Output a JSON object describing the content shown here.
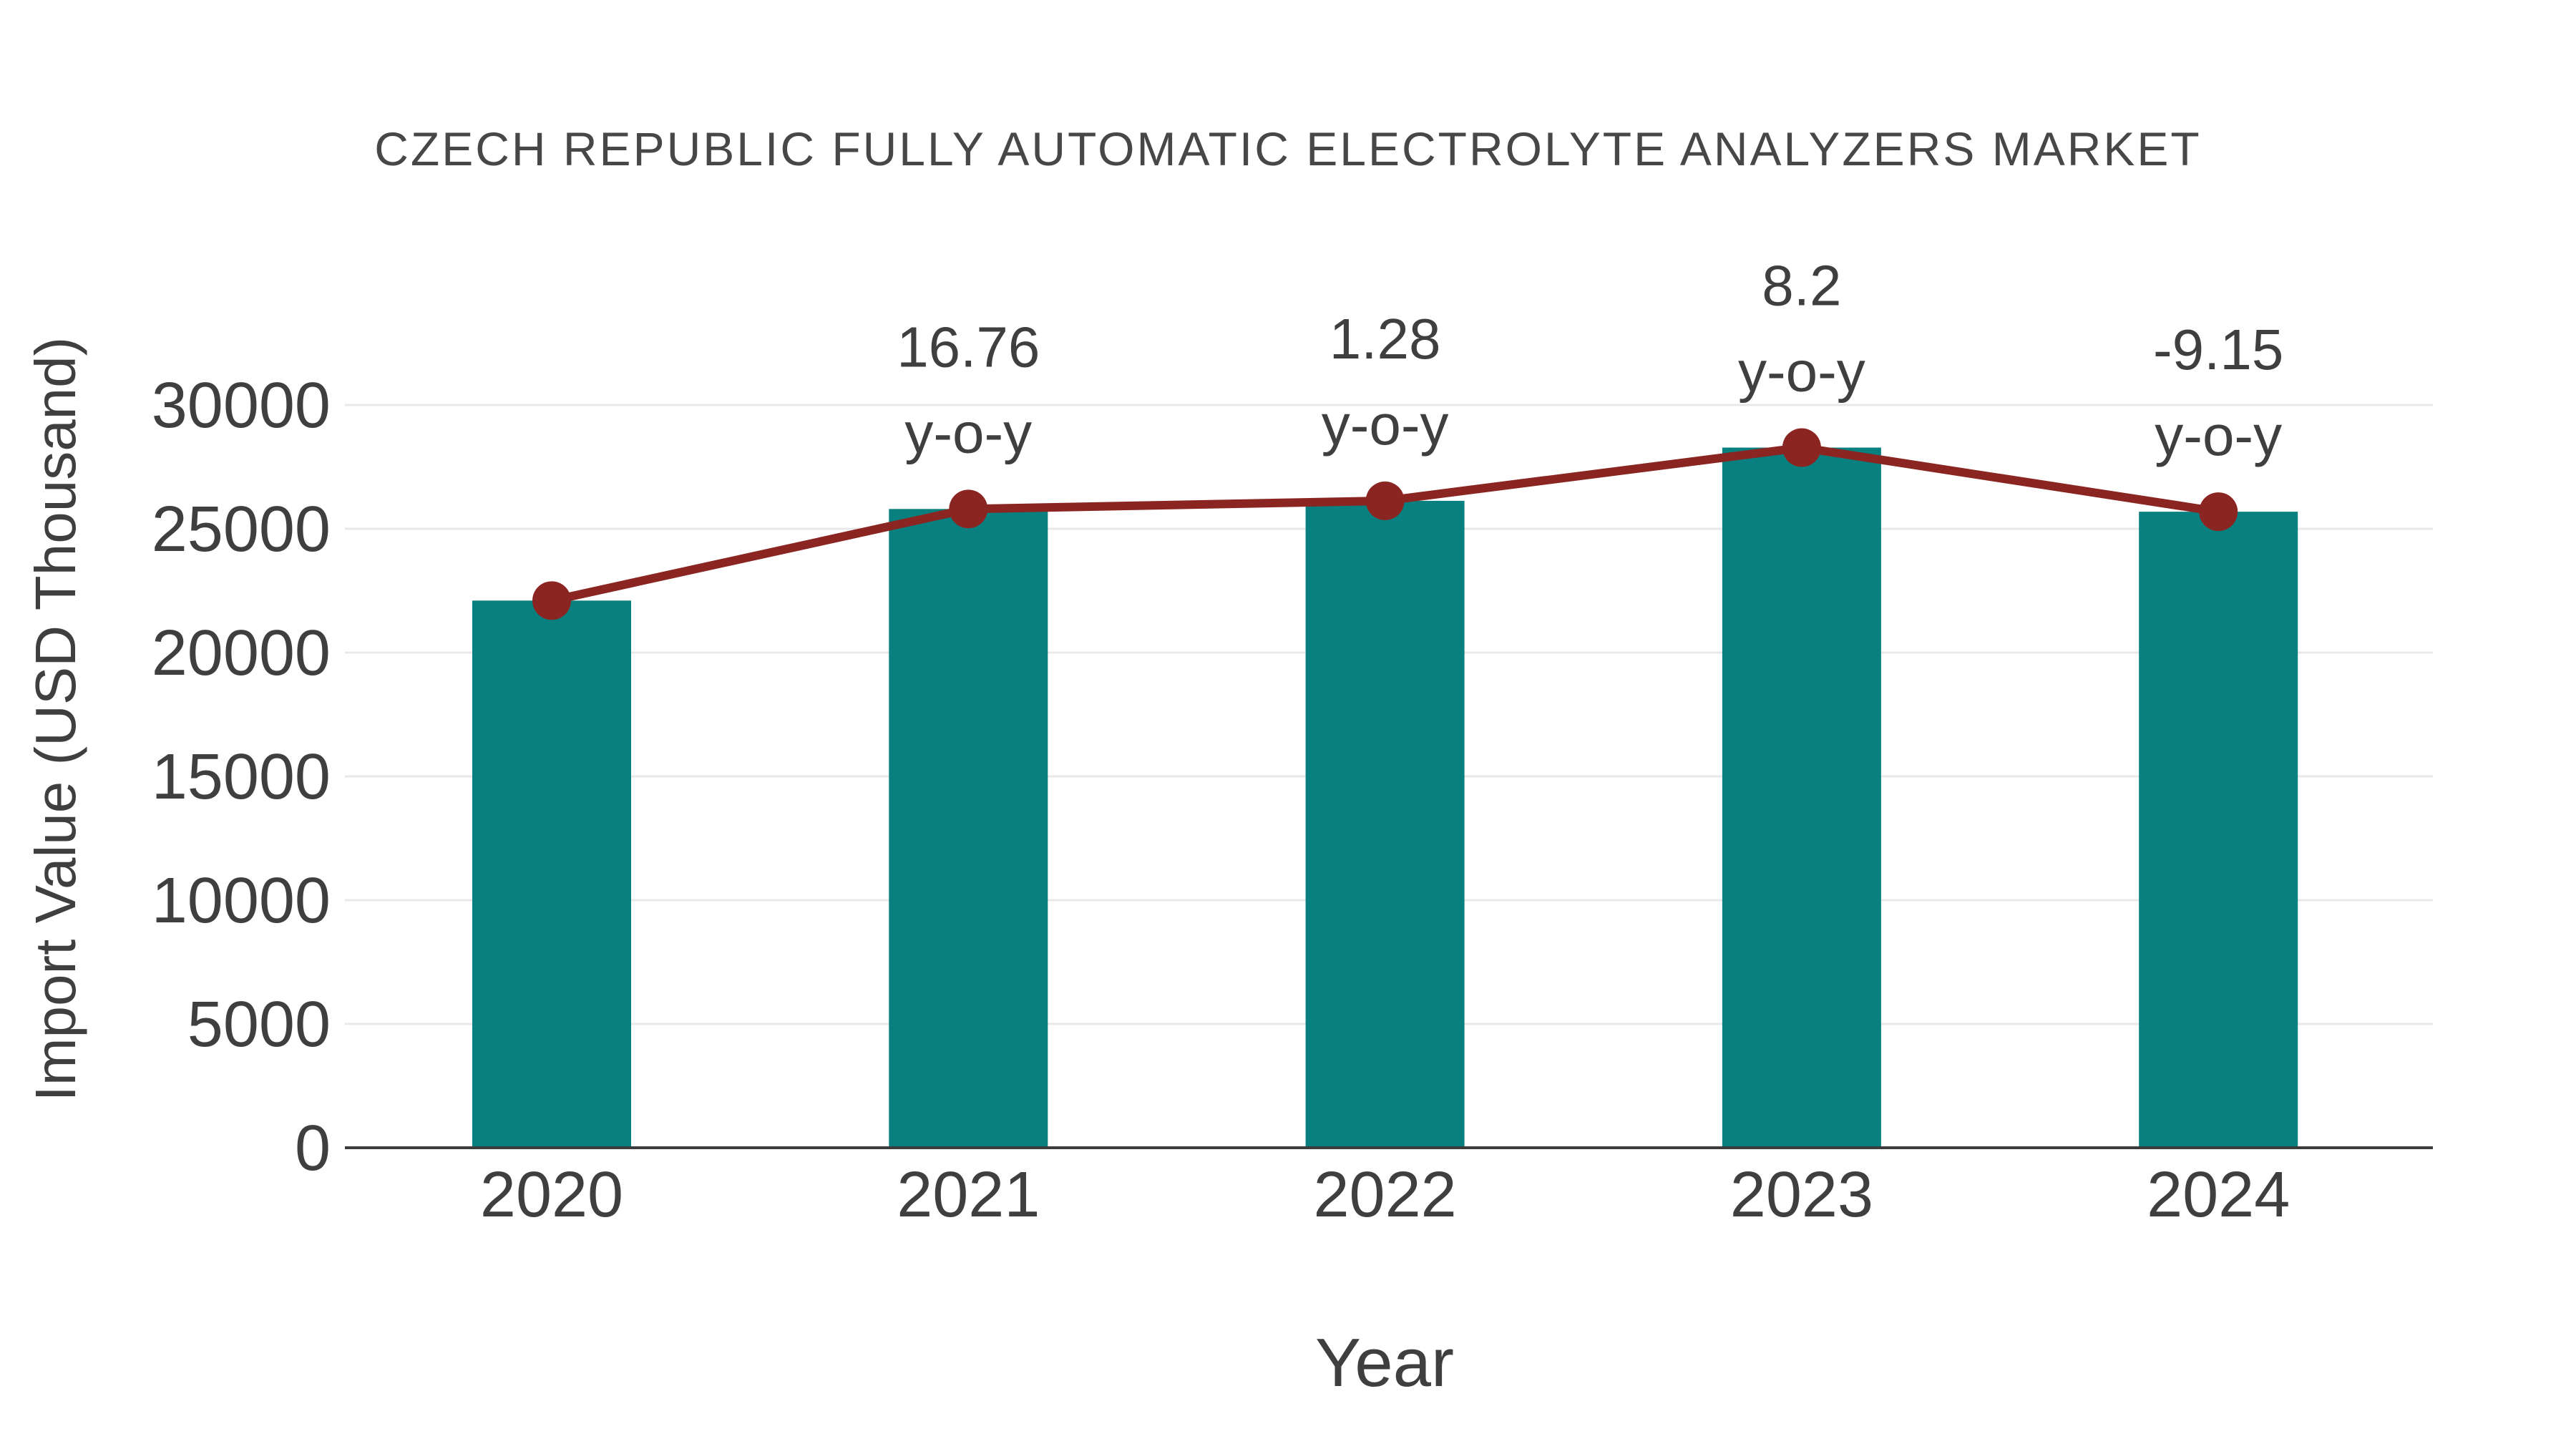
{
  "chart_data": {
    "type": "bar",
    "title": "CZECH REPUBLIC FULLY AUTOMATIC ELECTROLYTE ANALYZERS MARKET",
    "xlabel": "Year",
    "ylabel": "Import Value (USD Thousand)",
    "categories": [
      "2020",
      "2021",
      "2022",
      "2023",
      "2024"
    ],
    "series": [
      {
        "name": "import_value_bars",
        "type": "bar",
        "color": "#08807f",
        "values": [
          22100,
          25800,
          26130,
          28280,
          25690
        ]
      },
      {
        "name": "import_value_trend_line",
        "type": "line",
        "color": "#8b2522",
        "values": [
          22100,
          25800,
          26130,
          28280,
          25690
        ]
      }
    ],
    "annotations": [
      {
        "category": "2021",
        "value": "16.76",
        "suffix": "y-o-y"
      },
      {
        "category": "2022",
        "value": "1.28",
        "suffix": "y-o-y"
      },
      {
        "category": "2023",
        "value": "8.2",
        "suffix": "y-o-y"
      },
      {
        "category": "2024",
        "value": "-9.15",
        "suffix": "y-o-y"
      }
    ],
    "yticks": [
      0,
      5000,
      10000,
      15000,
      20000,
      25000,
      30000
    ],
    "ylim": [
      0,
      31500
    ],
    "grid": true,
    "legend_position": "none",
    "colors": {
      "bar": "#08807f",
      "line": "#8b2522",
      "grid": "#e8e8e8",
      "axis": "#3c3c3c",
      "text": "#3f3f3f",
      "title": "#474747",
      "background": "#ffffff"
    }
  }
}
